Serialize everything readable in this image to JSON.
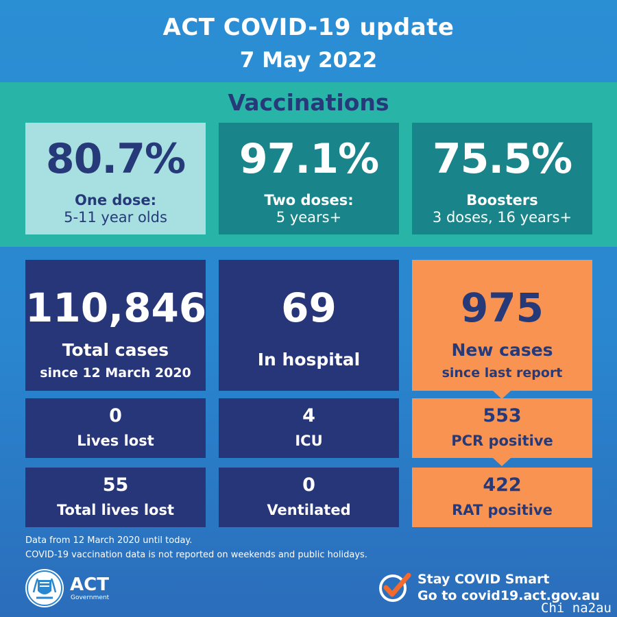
{
  "header": {
    "title": "ACT COVID-19 update",
    "date": "7 May 2022"
  },
  "vaccinations": {
    "title": "Vaccinations",
    "cards": [
      {
        "value": "80.7%",
        "label": "One dose:",
        "sublabel": "5-11 year olds"
      },
      {
        "value": "97.1%",
        "label": "Two doses:",
        "sublabel": "5 years+"
      },
      {
        "value": "75.5%",
        "label": "Boosters",
        "sublabel": "3 doses, 16 years+"
      }
    ]
  },
  "cases": {
    "total": {
      "value": "110,846",
      "label": "Total cases",
      "sublabel": "since 12 March 2020"
    },
    "hospital": {
      "value": "69",
      "label": "In hospital"
    },
    "new": {
      "value": "975",
      "label": "New cases",
      "sublabel": "since last report"
    },
    "lives_lost": {
      "value": "0",
      "label": "Lives lost"
    },
    "icu": {
      "value": "4",
      "label": "ICU"
    },
    "pcr": {
      "value": "553",
      "label": "PCR positive"
    },
    "total_lives_lost": {
      "value": "55",
      "label": "Total lives lost"
    },
    "ventilated": {
      "value": "0",
      "label": "Ventilated"
    },
    "rat": {
      "value": "422",
      "label": "RAT positive"
    }
  },
  "notes": [
    "Data from 12 March 2020 until today.",
    "COVID-19 vaccination data is not reported on weekends and public holidays."
  ],
  "footer": {
    "logo_text": "ACT",
    "logo_sub": "Government",
    "cta_line1": "Stay COVID Smart",
    "cta_line2": "Go to covid19.act.gov.au",
    "watermark": "Chi na2au"
  },
  "colors": {
    "navy": "#273679",
    "orange": "#f99351",
    "teal": "#28b5a8",
    "dark_teal": "#19858a",
    "light_teal": "#a8dfe0",
    "blue": "#2a8ed3"
  },
  "icons": {
    "crest": "act-crest-icon",
    "check": "checkmark-icon"
  }
}
